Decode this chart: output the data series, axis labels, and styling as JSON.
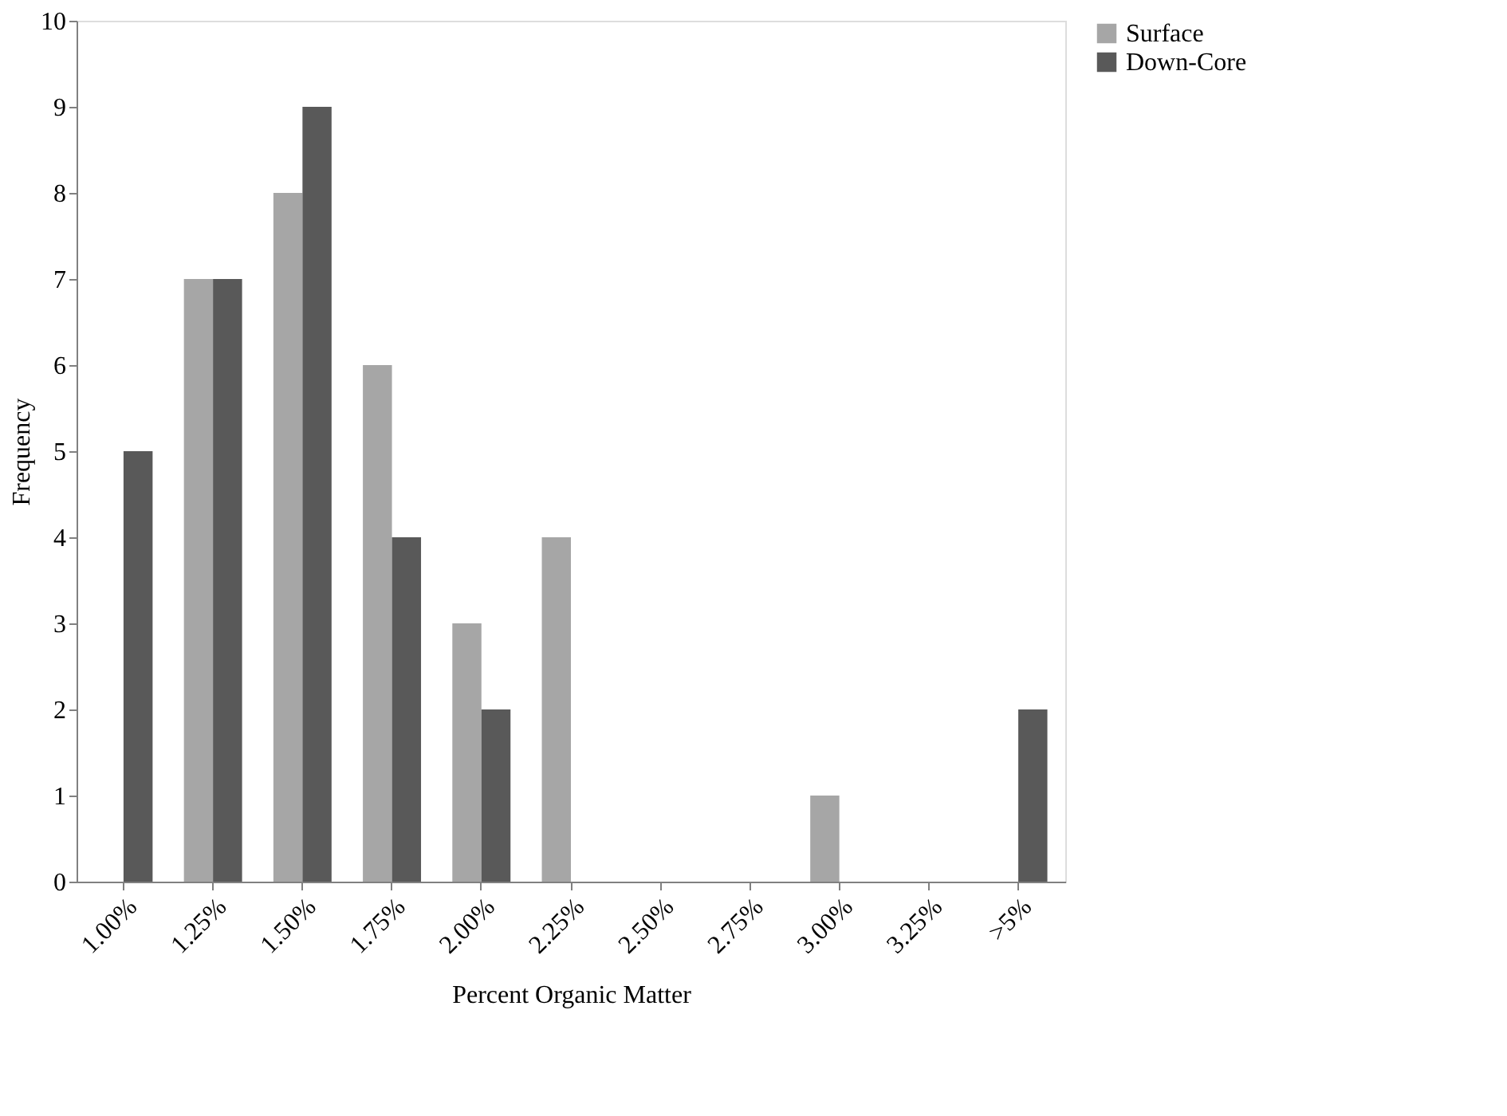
{
  "chart_data": {
    "type": "bar",
    "xlabel": "Percent Organic Matter",
    "ylabel": "Frequency",
    "categories": [
      "1.00%",
      "1.25%",
      "1.50%",
      "1.75%",
      "2.00%",
      "2.25%",
      "2.50%",
      "2.75%",
      "3.00%",
      "3.25%",
      ">5%"
    ],
    "series": [
      {
        "name": "Surface",
        "color": "#a6a6a6",
        "values": [
          0,
          7,
          8,
          6,
          3,
          4,
          0,
          0,
          1,
          0,
          0
        ]
      },
      {
        "name": "Down-Core",
        "color": "#595959",
        "values": [
          5,
          7,
          9,
          4,
          2,
          0,
          0,
          0,
          0,
          0,
          2
        ]
      }
    ],
    "ylim": [
      0,
      10
    ],
    "yticks": [
      0,
      1,
      2,
      3,
      4,
      5,
      6,
      7,
      8,
      9,
      10
    ],
    "grid": false,
    "legend": "right"
  }
}
